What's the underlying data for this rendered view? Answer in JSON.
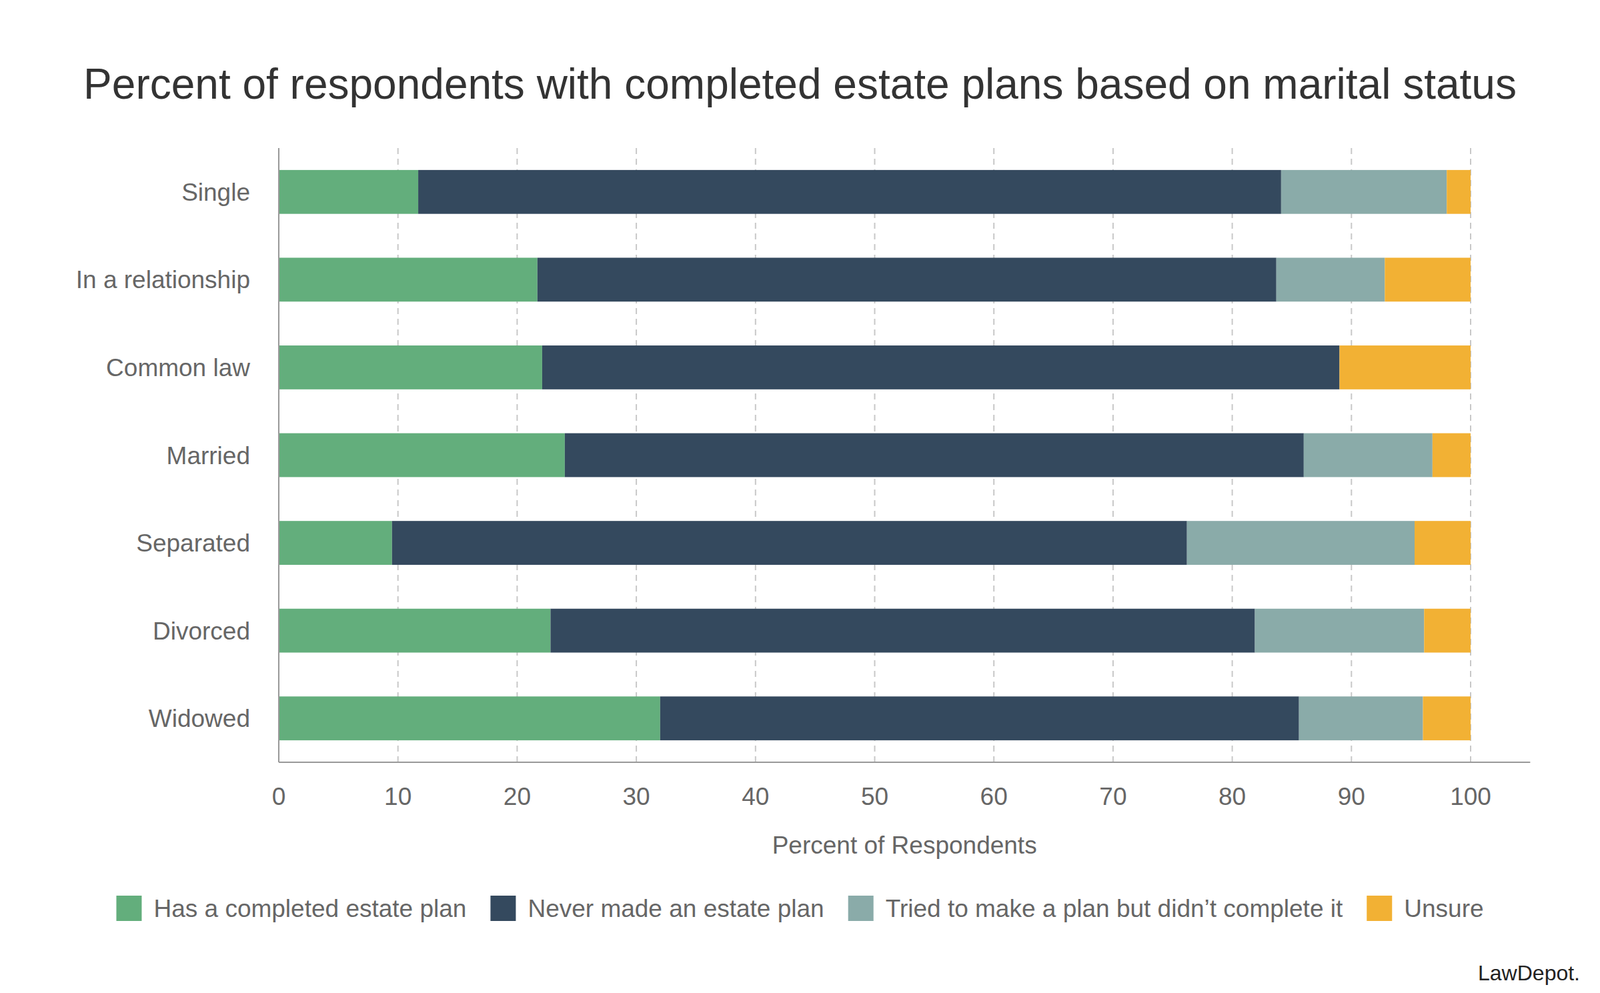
{
  "chart_data": {
    "type": "bar",
    "orientation": "horizontal",
    "stacked": true,
    "title": "Percent of respondents with completed estate plans based on marital status",
    "x_label": "Percent of Respondents",
    "source": "LawDepot.",
    "categories": [
      "Single",
      "In a relationship",
      "Common law",
      "Married",
      "Separated",
      "Divorced",
      "Widowed"
    ],
    "series": [
      {
        "name": "Has a completed estate plan",
        "color": "#63ae7c",
        "values": [
          11.7,
          21.7,
          22.1,
          24.0,
          9.5,
          22.8,
          32.0
        ]
      },
      {
        "name": "Never made an estate plan",
        "color": "#34495e",
        "values": [
          72.4,
          62.0,
          66.9,
          62.0,
          66.7,
          59.1,
          53.6
        ]
      },
      {
        "name": "Tried to make a plan but didn’t complete it",
        "color": "#8aaba9",
        "values": [
          13.9,
          9.1,
          0,
          10.8,
          19.1,
          14.2,
          10.4
        ]
      },
      {
        "name": "Unsure",
        "color": "#f2b134",
        "values": [
          2.0,
          7.2,
          11.0,
          3.2,
          4.7,
          3.9,
          4.0
        ]
      }
    ],
    "xlim": [
      0,
      105
    ],
    "xticks": [
      0,
      10,
      20,
      30,
      40,
      50,
      60,
      70,
      80,
      90,
      100
    ],
    "grid": true,
    "legend": "bottom"
  }
}
